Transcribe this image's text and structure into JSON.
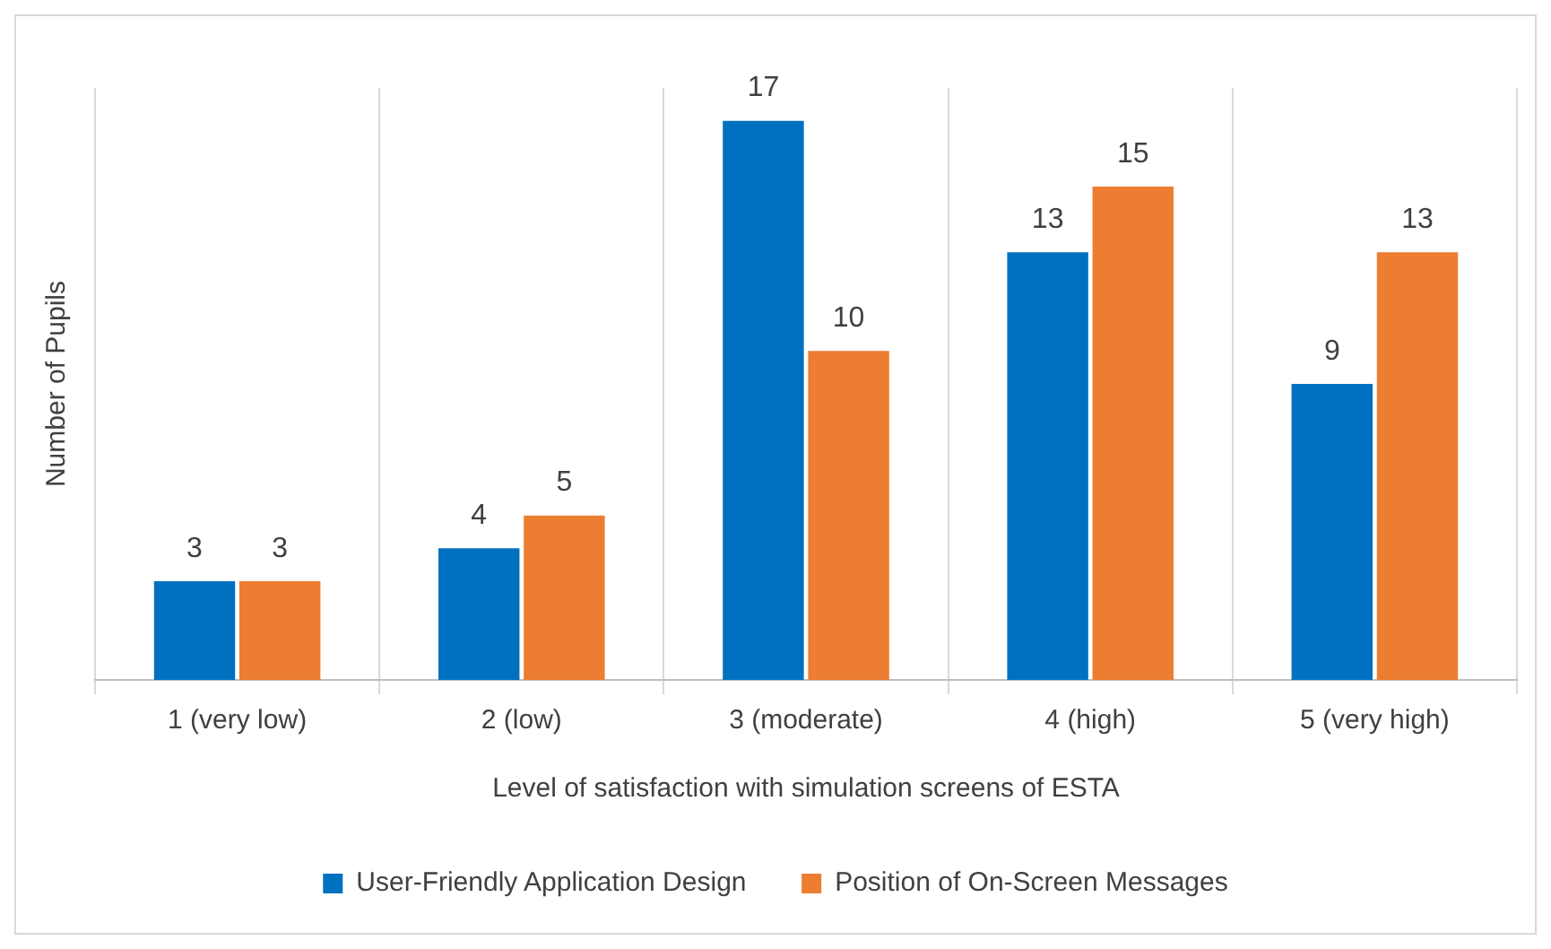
{
  "chart_data": {
    "type": "bar",
    "xlabel": "Level of satisfaction with simulation screens of ESTA",
    "ylabel": "Number of Pupils",
    "categories": [
      "1 (very low)",
      "2 (low)",
      "3 (moderate)",
      "4 (high)",
      "5 (very high)"
    ],
    "series": [
      {
        "name": "User-Friendly Application Design",
        "color": "#0070c0",
        "values": [
          3,
          4,
          17,
          13,
          9
        ]
      },
      {
        "name": "Position of On-Screen Messages",
        "color": "#ed7d31",
        "values": [
          3,
          5,
          10,
          15,
          13
        ]
      }
    ],
    "data_labels": true,
    "grid": "x",
    "legend": "bottom",
    "tick_labels": "x"
  }
}
